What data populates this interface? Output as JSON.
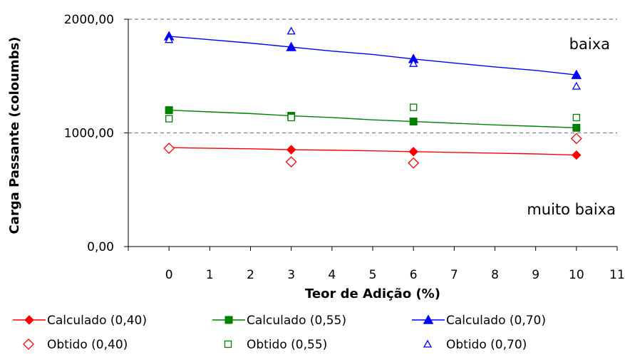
{
  "chart_data": {
    "type": "line",
    "xlabel": "Teor de Adição (%)",
    "ylabel": "Carga Passante (coloumbs)",
    "xlim": [
      -1,
      11
    ],
    "ylim": [
      0,
      2000
    ],
    "x_ticks": [
      "0",
      "1",
      "2",
      "3",
      "4",
      "5",
      "6",
      "7",
      "8",
      "9",
      "10",
      "11"
    ],
    "y_ticks": [
      "0,00",
      "1000,00",
      "2000,00"
    ],
    "grid": "dashed lines at 1000 and 2000",
    "annotations": [
      "baixa",
      "muito baixa"
    ],
    "legend_position": "bottom",
    "series": [
      {
        "name": "Calculado (0,40)",
        "style": "line-diamond-filled",
        "color": "#ff0000",
        "line": [
          [
            0,
            870
          ],
          [
            1,
            865
          ],
          [
            2,
            860
          ],
          [
            3,
            852
          ],
          [
            4,
            848
          ],
          [
            5,
            842
          ],
          [
            6,
            835
          ],
          [
            7,
            828
          ],
          [
            8,
            822
          ],
          [
            9,
            815
          ],
          [
            10,
            805
          ]
        ],
        "markers": [
          [
            0,
            870
          ],
          [
            3,
            852
          ],
          [
            6,
            835
          ],
          [
            10,
            805
          ]
        ]
      },
      {
        "name": "Calculado (0,55)",
        "style": "line-square-filled",
        "color": "#008000",
        "line": [
          [
            0,
            1200
          ],
          [
            1,
            1185
          ],
          [
            2,
            1170
          ],
          [
            3,
            1150
          ],
          [
            4,
            1135
          ],
          [
            5,
            1115
          ],
          [
            6,
            1100
          ],
          [
            7,
            1085
          ],
          [
            8,
            1070
          ],
          [
            9,
            1058
          ],
          [
            10,
            1045
          ]
        ],
        "markers": [
          [
            0,
            1200
          ],
          [
            3,
            1150
          ],
          [
            6,
            1100
          ],
          [
            10,
            1045
          ]
        ]
      },
      {
        "name": "Calculado (0,70)",
        "style": "line-triangle-filled",
        "color": "#0000ff",
        "line": [
          [
            0,
            1850
          ],
          [
            1,
            1820
          ],
          [
            2,
            1790
          ],
          [
            3,
            1755
          ],
          [
            4,
            1720
          ],
          [
            5,
            1690
          ],
          [
            6,
            1650
          ],
          [
            7,
            1615
          ],
          [
            8,
            1580
          ],
          [
            9,
            1550
          ],
          [
            10,
            1510
          ]
        ],
        "markers": [
          [
            0,
            1850
          ],
          [
            3,
            1755
          ],
          [
            6,
            1650
          ],
          [
            10,
            1510
          ]
        ]
      },
      {
        "name": "Obtido (0,40)",
        "style": "diamond-open",
        "color": "#ff0000",
        "markers": [
          [
            0,
            865
          ],
          [
            3,
            745
          ],
          [
            6,
            735
          ],
          [
            10,
            950
          ]
        ]
      },
      {
        "name": "Obtido (0,55)",
        "style": "square-open",
        "color": "#008000",
        "markers": [
          [
            0,
            1125
          ],
          [
            3,
            1135
          ],
          [
            6,
            1225
          ],
          [
            10,
            1135
          ]
        ]
      },
      {
        "name": "Obtido (0,70)",
        "style": "triangle-open",
        "color": "#0000ff",
        "markers": [
          [
            0,
            1820
          ],
          [
            3,
            1895
          ],
          [
            6,
            1610
          ],
          [
            10,
            1410
          ]
        ]
      }
    ]
  }
}
